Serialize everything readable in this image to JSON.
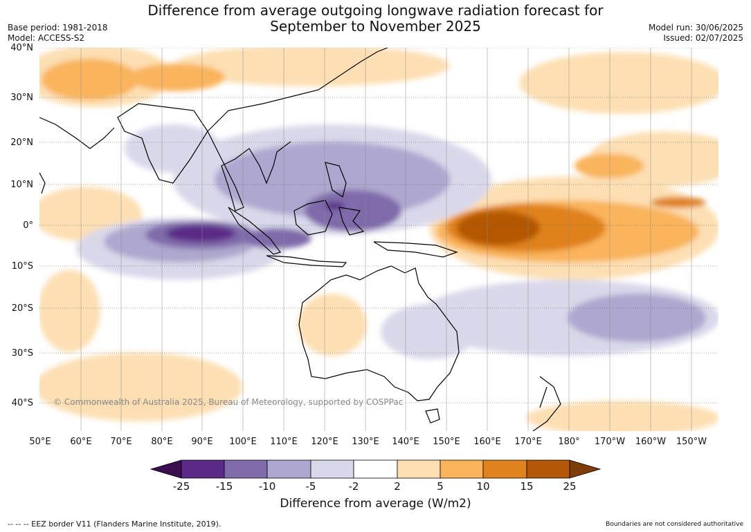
{
  "title_line1": "Difference from average outgoing longwave radiation forecast for",
  "title_line2": "September to November 2025",
  "base_period": "Base period: 1981-2018",
  "model": "Model: ACCESS-S2",
  "model_run": "Model run: 30/06/2025",
  "issued": "Issued: 02/07/2025",
  "lat_labels": [
    "40°N",
    "30°N",
    "20°N",
    "10°N",
    "0°",
    "10°S",
    "20°S",
    "30°S",
    "40°S"
  ],
  "lon_labels": [
    "50°E",
    "60°E",
    "70°E",
    "80°E",
    "90°E",
    "100°E",
    "110°E",
    "120°E",
    "130°E",
    "140°E",
    "150°E",
    "160°E",
    "170°E",
    "180°",
    "170°W",
    "160°W",
    "150°W"
  ],
  "copyright": "© Commonwealth of Australia 2025, Bureau of Meteorology, supported by COSPPac",
  "colorbar": {
    "ticks": [
      "-25",
      "-15",
      "-10",
      "-5",
      "-2",
      "2",
      "5",
      "10",
      "15",
      "25"
    ],
    "colors": [
      "#3b0f4f",
      "#5a2a86",
      "#7f6aaa",
      "#aea7cf",
      "#d9d8ea",
      "#ffffff",
      "#fddfb3",
      "#f9b45c",
      "#e0821e",
      "#b35806",
      "#7f3b08"
    ],
    "title": "Difference from average (W/m2)"
  },
  "footer_left": "--  --  -- EEZ border V11 (Flanders Marine Institute, 2019).",
  "footer_right": "Boundaries are not considered authoritative"
}
